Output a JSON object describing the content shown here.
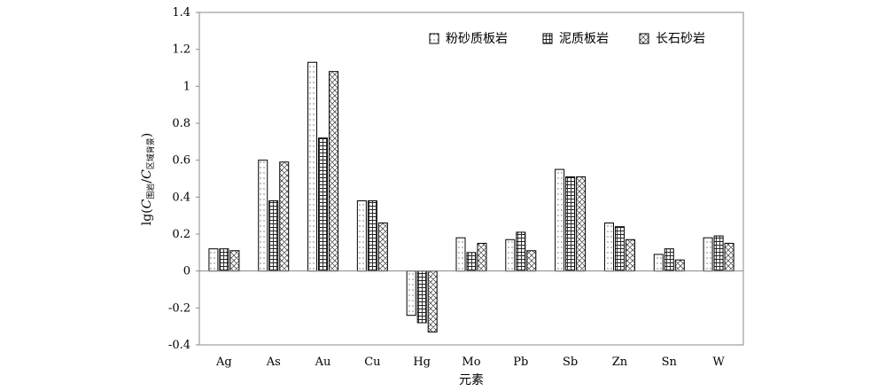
{
  "chart_data": {
    "type": "bar",
    "xlabel": "元素",
    "ylabel": {
      "prefix": "lg(",
      "num_symbol": "C",
      "num_sub": "围岩",
      "divider": "/",
      "den_symbol": "C",
      "den_sub": "区域背景",
      "suffix": ")"
    },
    "ylim": [
      -0.4,
      1.4
    ],
    "yticks": [
      "-0.4",
      "-0.2",
      "0",
      "0.2",
      "0.4",
      "0.6",
      "0.8",
      "1",
      "1.2",
      "1.4"
    ],
    "ytick_values": [
      -0.4,
      -0.2,
      0,
      0.2,
      0.4,
      0.6,
      0.8,
      1.0,
      1.2,
      1.4
    ],
    "grid": false,
    "legend_position": "top-right",
    "categories": [
      "Ag",
      "As",
      "Au",
      "Cu",
      "Hg",
      "Mo",
      "Pb",
      "Sb",
      "Zn",
      "Sn",
      "W"
    ],
    "series": [
      {
        "name": "粉砂质板岩",
        "pattern": "dots",
        "values": [
          0.12,
          0.6,
          1.13,
          0.38,
          -0.24,
          0.18,
          0.17,
          0.55,
          0.26,
          0.09,
          0.18
        ]
      },
      {
        "name": "泥质板岩",
        "pattern": "grid",
        "values": [
          0.12,
          0.38,
          0.72,
          0.38,
          -0.28,
          0.1,
          0.21,
          0.51,
          0.24,
          0.12,
          0.19
        ]
      },
      {
        "name": "长石砂岩",
        "pattern": "crosshatch",
        "values": [
          0.11,
          0.59,
          1.08,
          0.26,
          -0.33,
          0.15,
          0.11,
          0.51,
          0.17,
          0.06,
          0.15
        ]
      }
    ]
  }
}
